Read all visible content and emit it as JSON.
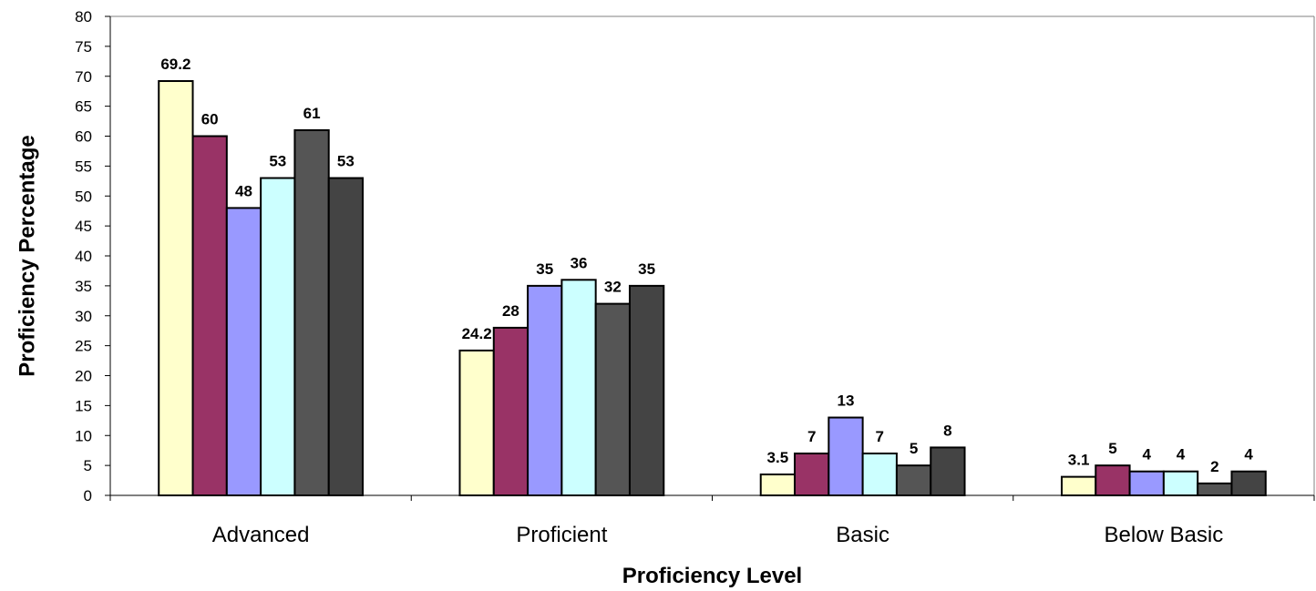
{
  "chart_data": {
    "type": "bar",
    "title": "",
    "xlabel": "Proficiency Level",
    "ylabel": "Proficiency Percentage",
    "ylim": [
      0,
      80
    ],
    "ytick_step": 5,
    "grid": false,
    "legend": "none",
    "categories": [
      "Advanced",
      "Proficient",
      "Basic",
      "Below Basic"
    ],
    "series": [
      {
        "color": "#FFFFCC",
        "values": [
          69.2,
          24.2,
          3.5,
          3.1
        ]
      },
      {
        "color": "#993366",
        "values": [
          60,
          28,
          7,
          5
        ]
      },
      {
        "color": "#9999FF",
        "values": [
          48,
          35,
          13,
          4
        ]
      },
      {
        "color": "#CCFFFF",
        "values": [
          53,
          36,
          7,
          4
        ]
      },
      {
        "color": "#555555",
        "values": [
          61,
          32,
          5,
          2
        ]
      },
      {
        "color": "#444444",
        "values": [
          53,
          35,
          8,
          4
        ]
      }
    ]
  }
}
